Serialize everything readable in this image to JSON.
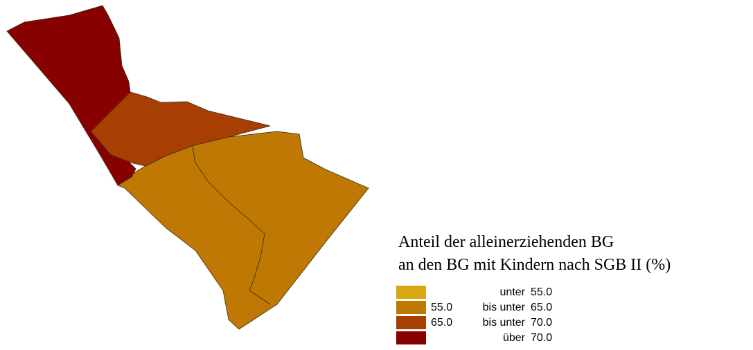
{
  "legend": {
    "title": [
      "Anteil der alleinerziehenden BG",
      "an den BG mit Kindern nach SGB II (%)"
    ],
    "items": [
      {
        "color": "#d8a913",
        "op": "unter",
        "to": "55.0"
      },
      {
        "color": "#bf7803",
        "from": "55.0",
        "op": "bis unter",
        "to": "65.0"
      },
      {
        "color": "#a83f02",
        "from": "65.0",
        "op": "bis unter",
        "to": "70.0"
      },
      {
        "color": "#870101",
        "op": "über",
        "to": "70.0"
      }
    ]
  }
}
